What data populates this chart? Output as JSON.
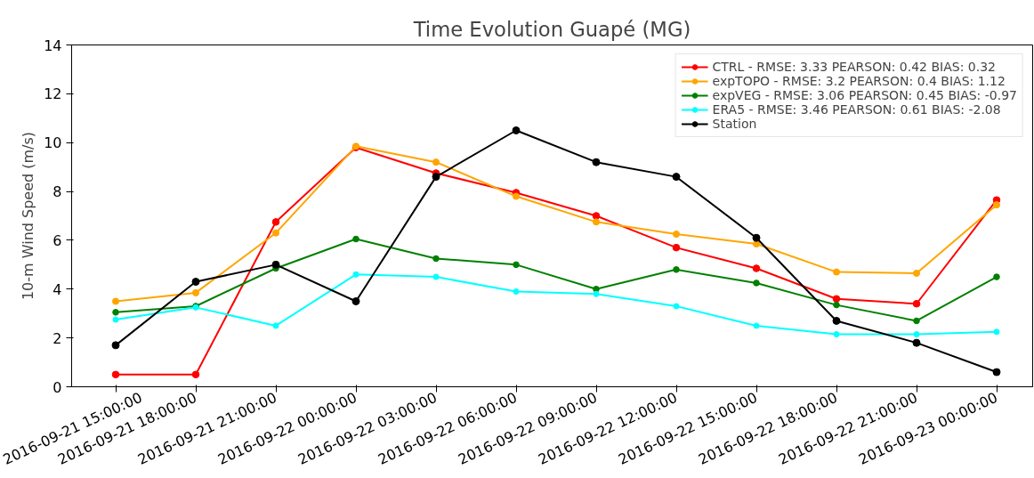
{
  "chart_data": {
    "type": "line",
    "title": "Time Evolution Guapé (MG)",
    "ylabel": "10-m Wind Speed (m/s)",
    "categories": [
      "2016-09-21 15:00:00",
      "2016-09-21 18:00:00",
      "2016-09-21 21:00:00",
      "2016-09-22 00:00:00",
      "2016-09-22 03:00:00",
      "2016-09-22 06:00:00",
      "2016-09-22 09:00:00",
      "2016-09-22 12:00:00",
      "2016-09-22 15:00:00",
      "2016-09-22 18:00:00",
      "2016-09-22 21:00:00",
      "2016-09-23 00:00:00"
    ],
    "series": [
      {
        "name": "CTRL - RMSE: 3.33 PEARSON: 0.42 BIAS: 0.32",
        "color": "#ff0000",
        "values": [
          0.5,
          0.5,
          6.75,
          9.8,
          8.75,
          7.95,
          7.0,
          5.7,
          4.85,
          3.6,
          3.4,
          7.65
        ]
      },
      {
        "name": "expTOPO - RMSE: 3.2 PEARSON: 0.4 BIAS: 1.12",
        "color": "#ffa500",
        "values": [
          3.5,
          3.85,
          6.3,
          9.85,
          9.2,
          7.8,
          6.75,
          6.25,
          5.85,
          4.7,
          4.65,
          7.45
        ]
      },
      {
        "name": "expVEG - RMSE: 3.06 PEARSON: 0.45 BIAS: -0.97",
        "color": "#008000",
        "values": [
          3.05,
          3.3,
          4.85,
          6.05,
          5.25,
          5.0,
          4.0,
          4.8,
          4.25,
          3.35,
          2.7,
          4.5
        ]
      },
      {
        "name": "ERA5 - RMSE: 3.46 PEARSON: 0.61 BIAS: -2.08",
        "color": "#00ffff",
        "values": [
          2.75,
          3.25,
          2.5,
          4.6,
          4.5,
          3.9,
          3.8,
          3.3,
          2.5,
          2.15,
          2.15,
          2.25
        ]
      },
      {
        "name": "Station",
        "color": "#000000",
        "values": [
          1.7,
          4.3,
          5.0,
          3.5,
          8.6,
          10.5,
          9.2,
          8.6,
          6.1,
          2.7,
          1.8,
          0.6
        ]
      }
    ],
    "ylim": [
      0,
      14
    ],
    "yticks": [
      0,
      2,
      4,
      6,
      8,
      10,
      12,
      14
    ],
    "grid": false,
    "legend": "top right",
    "marker": "circle",
    "line_style": "solid"
  }
}
